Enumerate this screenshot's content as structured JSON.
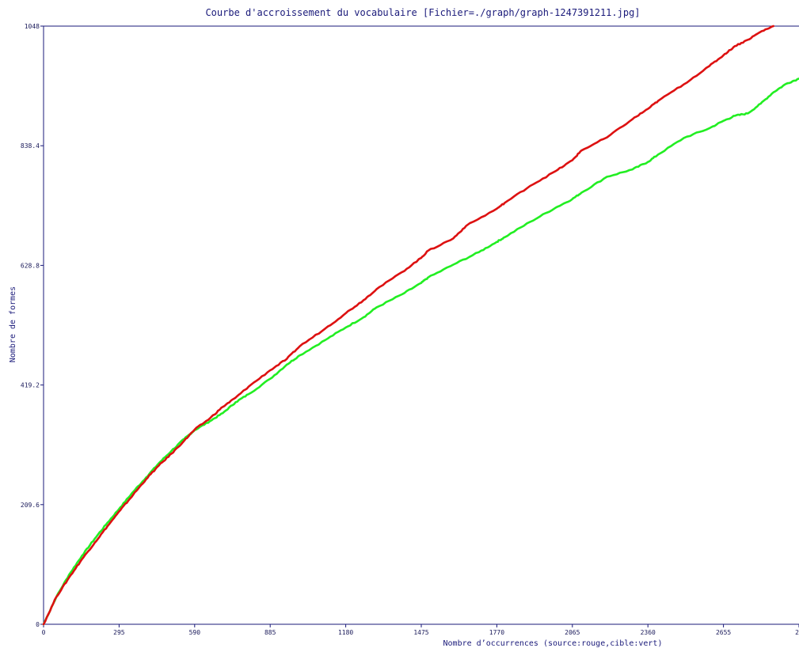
{
  "chart_data": {
    "type": "line",
    "title": "Courbe d'accroissement du vocabulaire [Fichier=./graph/graph-1247391211.jpg]",
    "xlabel": "Nombre d’occurrences (source:rouge,cible:vert)",
    "ylabel": "Nombre de formes",
    "xlim": [
      0,
      2950
    ],
    "ylim": [
      0,
      1048
    ],
    "x_ticks": [
      "0",
      "295",
      "590",
      "885",
      "1180",
      "1475",
      "1770",
      "2065",
      "2360",
      "2655",
      "2"
    ],
    "y_ticks": [
      "0",
      "209.6",
      "419.2",
      "628.8",
      "838.4",
      "1048"
    ],
    "grid": false,
    "series": [
      {
        "color": "#dd1111",
        "x": [
          0,
          50,
          100,
          150,
          200,
          250,
          300,
          350,
          400,
          450,
          500,
          550,
          590,
          650,
          700,
          750,
          800,
          885,
          950,
          1000,
          1100,
          1180,
          1250,
          1300,
          1400,
          1475,
          1500,
          1600,
          1650,
          1770,
          1800,
          1900,
          2000,
          2065,
          2100,
          2200,
          2300,
          2360,
          2400,
          2500,
          2600,
          2655,
          2700,
          2750,
          2800,
          2850
        ],
        "y": [
          0,
          48,
          82,
          114,
          143,
          172,
          200,
          227,
          254,
          278,
          299,
          322,
          341,
          361,
          381,
          397,
          416,
          445,
          465,
          487,
          518,
          545,
          568,
          587,
          617,
          642,
          654,
          676,
          698,
          728,
          738,
          768,
          794,
          813,
          830,
          853,
          885,
          903,
          917,
          946,
          978,
          997,
          1013,
          1024,
          1038,
          1048
        ]
      },
      {
        "color": "#22ee22",
        "x": [
          0,
          50,
          100,
          150,
          200,
          250,
          300,
          350,
          400,
          450,
          500,
          550,
          590,
          650,
          700,
          750,
          800,
          885,
          950,
          1000,
          1100,
          1180,
          1250,
          1300,
          1400,
          1475,
          1500,
          1600,
          1700,
          1770,
          1800,
          1900,
          2000,
          2065,
          2100,
          2200,
          2300,
          2360,
          2400,
          2500,
          2600,
          2655,
          2700,
          2750,
          2800,
          2850,
          2900,
          2950
        ],
        "y": [
          0,
          48,
          87,
          120,
          150,
          178,
          205,
          232,
          257,
          282,
          304,
          325,
          340,
          356,
          370,
          389,
          403,
          430,
          455,
          471,
          498,
          520,
          538,
          555,
          578,
          598,
          607,
          630,
          652,
          670,
          678,
          705,
          730,
          745,
          756,
          784,
          797,
          810,
          823,
          852,
          869,
          882,
          891,
          895,
          912,
          932,
          947,
          956
        ]
      }
    ]
  }
}
